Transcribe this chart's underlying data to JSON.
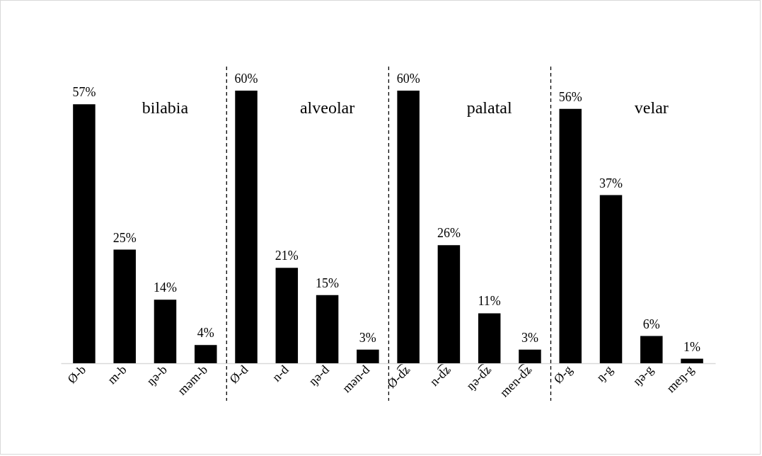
{
  "chart_data": {
    "type": "bar",
    "categories": [
      "Ø-b",
      "m-b",
      "ŋə-b",
      "məm-b",
      "Ø-d",
      "n-d",
      "ŋə-d",
      "mən-d",
      "Ø-d͡ʑ",
      "n-d͡ʑ",
      "ŋə-d͡ʑ",
      "men-d͡ʑ",
      "Ø-g",
      "ŋ-g",
      "ŋə-g",
      "meŋ-g"
    ],
    "values": [
      57,
      25,
      14,
      4,
      60,
      21,
      15,
      3,
      60,
      26,
      11,
      3,
      56,
      37,
      6,
      1
    ],
    "value_labels": [
      "57%",
      "25%",
      "14%",
      "4%",
      "60%",
      "21%",
      "15%",
      "3%",
      "60%",
      "26%",
      "11%",
      "3%",
      "56%",
      "37%",
      "6%",
      "1%"
    ],
    "color": "#000000",
    "annotations": [
      "bilabia",
      "alveolar",
      "palatal",
      "velar"
    ],
    "ref_lines": [
      {
        "axis": "x",
        "value": "Ø-d",
        "line_style": "dashed",
        "color": "#000000"
      },
      {
        "axis": "x",
        "value": "Ø-d͡ʑ",
        "line_style": "dashed",
        "color": "#000000"
      },
      {
        "axis": "x",
        "value": "Ø-g",
        "line_style": "dashed",
        "color": "#000000"
      }
    ],
    "grid": false
  }
}
